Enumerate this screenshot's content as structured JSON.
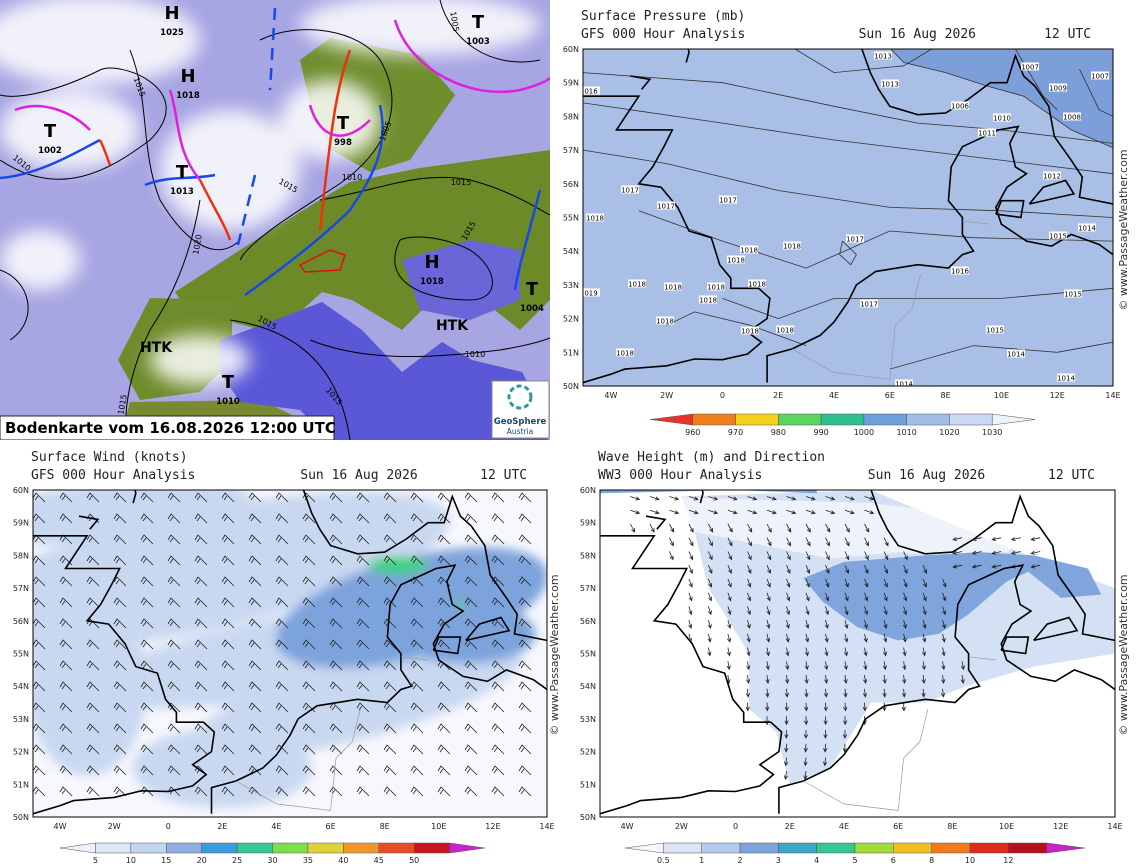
{
  "analysis_map": {
    "caption": "Bodenkarte vom 16.08.2026 12:00 UTC",
    "logo": {
      "name": "GeoSphere",
      "sub": "Austria"
    },
    "systems": [
      {
        "symbol": "H",
        "pressure": "1025"
      },
      {
        "symbol": "T",
        "pressure": "1003"
      },
      {
        "symbol": "H",
        "pressure": "1018"
      },
      {
        "symbol": "T",
        "pressure": "1002"
      },
      {
        "symbol": "T",
        "pressure": "998"
      },
      {
        "symbol": "T",
        "pressure": "1013"
      },
      {
        "symbol": "H",
        "pressure": "1018"
      },
      {
        "symbol": "T",
        "pressure": "1004"
      },
      {
        "symbol": "T",
        "pressure": "1010"
      }
    ],
    "region_labels": [
      "HTK",
      "HTK"
    ],
    "isobar_labels": [
      "1015",
      "1010",
      "1005",
      "1010",
      "1015",
      "1015",
      "1020",
      "1015",
      "1010",
      "1015",
      "1015",
      "1005",
      "1015"
    ]
  },
  "pressure_map": {
    "title": "Surface Pressure (mb)",
    "model": "GFS 000 Hour Analysis",
    "date": "Sun 16 Aug 2026",
    "time": "12 UTC",
    "credit": "© www.PassageWeather.com",
    "isobar_labels": [
      "1013",
      "1013",
      "1007",
      "1009",
      "1007",
      "1006",
      "1010",
      "1008",
      "1011",
      "1012",
      "1014",
      "1015",
      "1016",
      "1015",
      "1015",
      "1014",
      "1014",
      "1014",
      "1017",
      "1017",
      "1017",
      "1017",
      "1017",
      "1018",
      "1018",
      "1018",
      "1018",
      "1018",
      "1018",
      "1018",
      "1018",
      "1018",
      "1018",
      "1018",
      "1018",
      "1018",
      "016",
      "019"
    ],
    "scale": [
      960,
      970,
      980,
      990,
      1000,
      1010,
      1020,
      1030
    ]
  },
  "wind_map": {
    "title": "Surface Wind (knots)",
    "model": "GFS 000 Hour Analysis",
    "date": "Sun 16 Aug 2026",
    "time": "12 UTC",
    "credit": "© www.PassageWeather.com",
    "scale": [
      5,
      10,
      15,
      20,
      25,
      30,
      35,
      40,
      45,
      50
    ]
  },
  "wave_map": {
    "title": "Wave Height (m) and Direction",
    "model": "WW3 000 Hour Analysis",
    "date": "Sun 16 Aug 2026",
    "time": "12 UTC",
    "credit": "© www.PassageWeather.com",
    "scale": [
      0.5,
      1,
      2,
      3,
      4,
      5,
      6,
      8,
      10,
      12
    ]
  },
  "lat_ticks": [
    "60N",
    "59N",
    "58N",
    "57N",
    "56N",
    "55N",
    "54N",
    "53N",
    "52N",
    "51N",
    "50N"
  ],
  "lon_ticks": [
    "4W",
    "2W",
    "0",
    "2E",
    "4E",
    "6E",
    "8E",
    "10E",
    "12E",
    "14E"
  ]
}
